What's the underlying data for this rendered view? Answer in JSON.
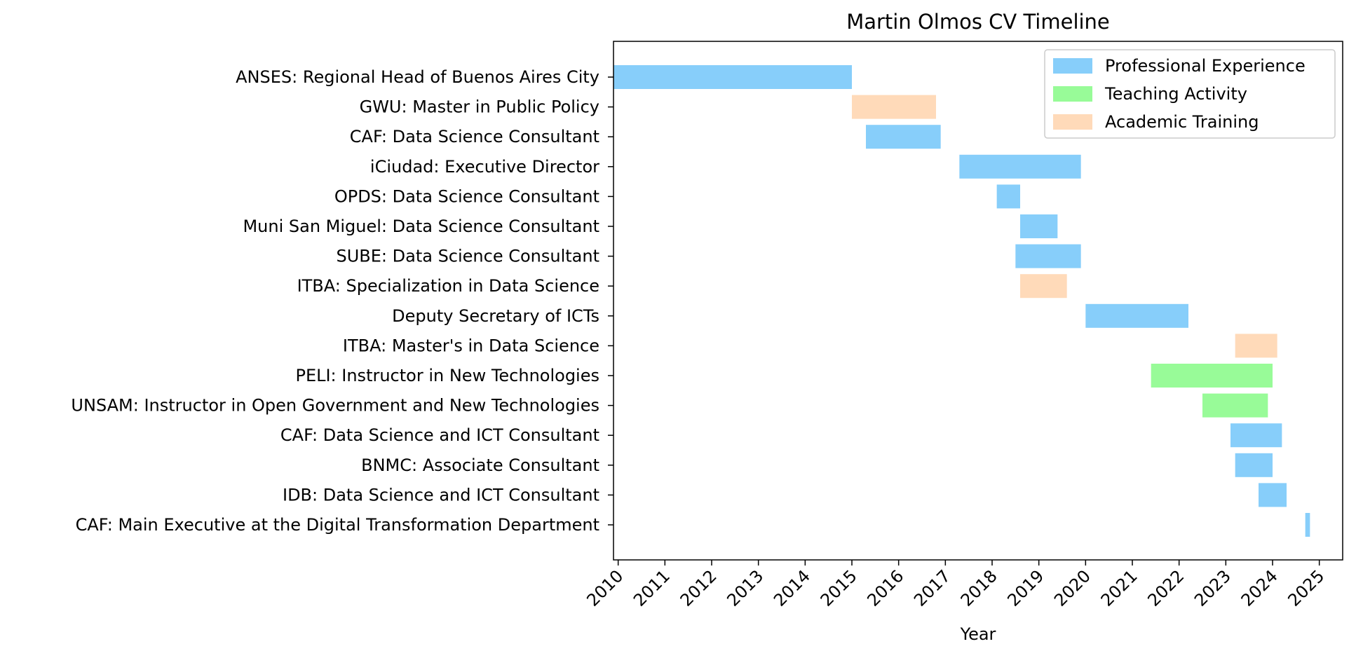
{
  "chart_data": {
    "type": "bar",
    "orientation": "horizontal-timeline",
    "title": "Martin Olmos CV Timeline",
    "xlabel": "Year",
    "ylabel": "",
    "xlim": [
      2009.9,
      2025.5
    ],
    "x_ticks": [
      "2010",
      "2011",
      "2012",
      "2013",
      "2014",
      "2015",
      "2016",
      "2017",
      "2018",
      "2019",
      "2020",
      "2021",
      "2022",
      "2023",
      "2024",
      "2025"
    ],
    "grid": false,
    "legend_position": "top-right",
    "series": [
      {
        "name": "Professional Experience",
        "color": "#87CEFA"
      },
      {
        "name": "Teaching Activity",
        "color": "#98FB98"
      },
      {
        "name": "Academic Training",
        "color": "#FFDAB9"
      }
    ],
    "items": [
      {
        "label": "ANSES: Regional Head of Buenos Aires City",
        "start": 2009.9,
        "end": 2015.0,
        "series": "Professional Experience"
      },
      {
        "label": "GWU: Master in Public Policy",
        "start": 2015.0,
        "end": 2016.8,
        "series": "Academic Training"
      },
      {
        "label": "CAF: Data Science Consultant",
        "start": 2015.3,
        "end": 2016.9,
        "series": "Professional Experience"
      },
      {
        "label": "iCiudad: Executive Director",
        "start": 2017.3,
        "end": 2019.9,
        "series": "Professional Experience"
      },
      {
        "label": "OPDS: Data Science Consultant",
        "start": 2018.1,
        "end": 2018.6,
        "series": "Professional Experience"
      },
      {
        "label": "Muni San Miguel: Data Science Consultant",
        "start": 2018.6,
        "end": 2019.4,
        "series": "Professional Experience"
      },
      {
        "label": "SUBE: Data Science Consultant",
        "start": 2018.5,
        "end": 2019.9,
        "series": "Professional Experience"
      },
      {
        "label": "ITBA: Specialization in Data Science",
        "start": 2018.6,
        "end": 2019.6,
        "series": "Academic Training"
      },
      {
        "label": "Deputy Secretary of ICTs",
        "start": 2020.0,
        "end": 2022.2,
        "series": "Professional Experience"
      },
      {
        "label": "ITBA: Master's in Data Science",
        "start": 2023.2,
        "end": 2024.1,
        "series": "Academic Training"
      },
      {
        "label": "PELI: Instructor in New Technologies",
        "start": 2021.4,
        "end": 2024.0,
        "series": "Teaching Activity"
      },
      {
        "label": "UNSAM: Instructor in Open Government and New Technologies",
        "start": 2022.5,
        "end": 2023.9,
        "series": "Teaching Activity"
      },
      {
        "label": "CAF: Data Science and ICT Consultant",
        "start": 2023.1,
        "end": 2024.2,
        "series": "Professional Experience"
      },
      {
        "label": "BNMC: Associate Consultant",
        "start": 2023.2,
        "end": 2024.0,
        "series": "Professional Experience"
      },
      {
        "label": "IDB: Data Science and ICT Consultant",
        "start": 2023.7,
        "end": 2024.3,
        "series": "Professional Experience"
      },
      {
        "label": "CAF: Main Executive at the Digital Transformation Department",
        "start": 2024.7,
        "end": 2024.8,
        "series": "Professional Experience"
      }
    ]
  }
}
